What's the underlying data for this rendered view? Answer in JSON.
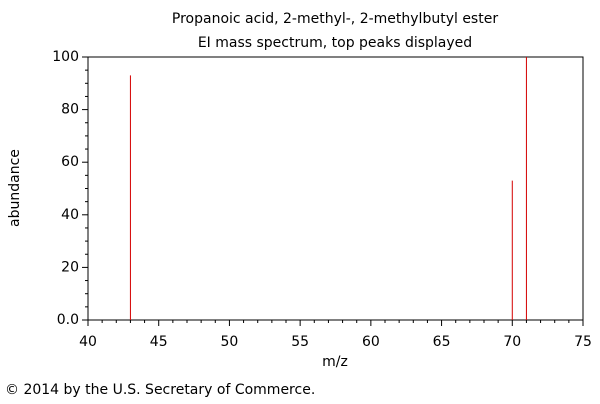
{
  "chart_data": {
    "type": "stem",
    "title": "Propanoic acid, 2-methyl-, 2-methylbutyl ester",
    "subtitle": "EI mass spectrum, top peaks displayed",
    "x_label": "m/z",
    "y_label": "abundance",
    "x": [
      43,
      70,
      71
    ],
    "values": [
      93,
      53,
      100
    ],
    "color": "#d40000",
    "xlim": [
      40,
      75
    ],
    "xticks": [
      40,
      45,
      50,
      55,
      60,
      65,
      70,
      75
    ],
    "ylim": [
      0,
      100
    ],
    "yticks": [
      {
        "value": 0,
        "label": "0.0"
      },
      20,
      40,
      60,
      80,
      100
    ],
    "footer": "© 2014 by the U.S. Secretary of Commerce."
  }
}
